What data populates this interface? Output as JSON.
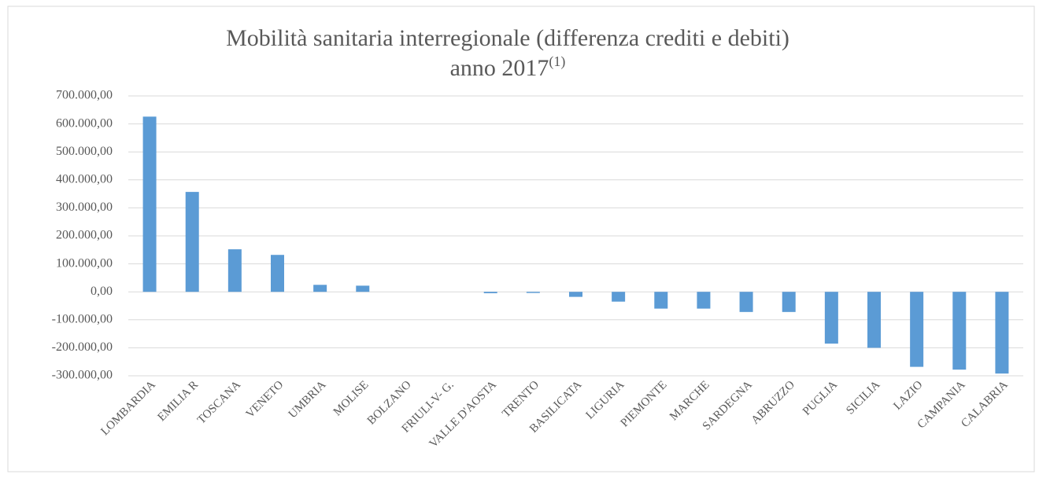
{
  "chart_data": {
    "type": "bar",
    "title": "Mobilità sanitaria interregionale (differenza crediti e debiti)",
    "subtitle": "anno 2017",
    "subtitle_note": "(1)",
    "categories": [
      "LOMBARDIA",
      "EMILIA R",
      "TOSCANA",
      "VENETO",
      "UMBRIA",
      "MOLISE",
      "BOLZANO",
      "FRIULI-V- G.",
      "VALLE D'AOSTA",
      "TRENTO",
      "BASILICATA",
      "LIGURIA",
      "PIEMONTE",
      "MARCHE",
      "SARDEGNA",
      "ABRUZZO",
      "PUGLIA",
      "SICILIA",
      "LAZIO",
      "CAMPANIA",
      "CALABRIA"
    ],
    "values": [
      626000,
      357000,
      152000,
      132000,
      25000,
      22000,
      0,
      0,
      -5000,
      -4000,
      -18000,
      -35000,
      -60000,
      -60000,
      -72000,
      -72000,
      -185000,
      -200000,
      -268000,
      -278000,
      -292000
    ],
    "color": "#5b9bd5",
    "ylim": [
      -300000,
      700000
    ],
    "yticks": [
      {
        "value": -300000,
        "label": "-300.000,00"
      },
      {
        "value": -200000,
        "label": "-200.000,00"
      },
      {
        "value": -100000,
        "label": "-100.000,00"
      },
      {
        "value": 0,
        "label": "0,00"
      },
      {
        "value": 100000,
        "label": "100.000,00"
      },
      {
        "value": 200000,
        "label": "200.000,00"
      },
      {
        "value": 300000,
        "label": "300.000,00"
      },
      {
        "value": 400000,
        "label": "400.000,00"
      },
      {
        "value": 500000,
        "label": "500.000,00"
      },
      {
        "value": 600000,
        "label": "600.000,00"
      },
      {
        "value": 700000,
        "label": "700.000,00"
      }
    ],
    "grid": true
  }
}
